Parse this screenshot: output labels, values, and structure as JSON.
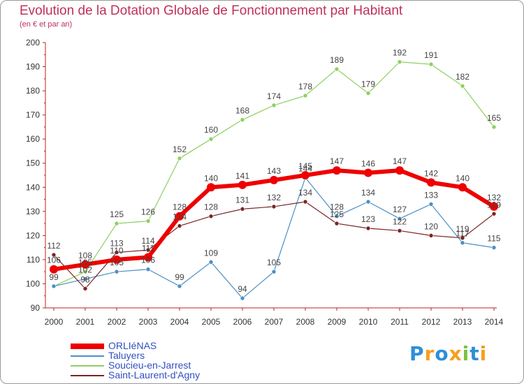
{
  "header": {
    "title": "Evolution de la Dotation Globale de Fonctionnement par Habitant",
    "subtitle": "(en € et par an)"
  },
  "logo": {
    "letters": [
      "P",
      "r",
      "o",
      "x",
      "i",
      "t",
      "i"
    ],
    "colors": [
      "#2f8fd8",
      "#f5a020",
      "#2f8fd8",
      "#f5a020",
      "#7cc142",
      "#2f8fd8",
      "#f5a020"
    ]
  },
  "chart_data": {
    "type": "line",
    "title": "Evolution de la Dotation Globale de Fonctionnement par Habitant",
    "subtitle": "(en € et par an)",
    "xlabel": "",
    "ylabel": "",
    "x": [
      "2000",
      "2001",
      "2002",
      "2003",
      "2004",
      "2005",
      "2006",
      "2007",
      "2008",
      "2009",
      "2010",
      "2011",
      "2012",
      "2013",
      "2014"
    ],
    "ylim": [
      90,
      200
    ],
    "yticks": [
      90,
      100,
      110,
      120,
      130,
      140,
      150,
      160,
      170,
      180,
      190,
      200
    ],
    "grid": false,
    "legend_position": "bottom-left",
    "series": [
      {
        "name": "ORLIéNAS",
        "color": "#ee0000",
        "width": 6,
        "marker": 6,
        "values": [
          106,
          108,
          110,
          111,
          128,
          140,
          141,
          143,
          145,
          147,
          146,
          147,
          142,
          140,
          132
        ]
      },
      {
        "name": "Taluyers",
        "color": "#4a8fc6",
        "width": 1.2,
        "marker": 3,
        "values": [
          99,
          102,
          105,
          106,
          99,
          109,
          94,
          105,
          144,
          128,
          134,
          127,
          133,
          117,
          115
        ]
      },
      {
        "name": "Soucieu-en-Jarrest",
        "color": "#8ed060",
        "width": 1.2,
        "marker": 3,
        "values": [
          99,
          105,
          125,
          126,
          152,
          160,
          168,
          174,
          178,
          189,
          179,
          192,
          191,
          182,
          165
        ]
      },
      {
        "name": "Saint-Laurent-d'Agny",
        "color": "#7a2424",
        "width": 1.2,
        "marker": 3,
        "values": [
          112,
          98,
          113,
          114,
          124,
          128,
          131,
          132,
          134,
          125,
          123,
          122,
          120,
          119,
          129
        ]
      }
    ],
    "data_labels": [
      {
        "series": 0,
        "index": 0,
        "text": "106"
      },
      {
        "series": 0,
        "index": 1,
        "text": "108"
      },
      {
        "series": 0,
        "index": 2,
        "text": "110"
      },
      {
        "series": 0,
        "index": 3,
        "text": "111"
      },
      {
        "series": 0,
        "index": 4,
        "text": "128"
      },
      {
        "series": 0,
        "index": 5,
        "text": "140"
      },
      {
        "series": 0,
        "index": 6,
        "text": "141"
      },
      {
        "series": 0,
        "index": 7,
        "text": "143"
      },
      {
        "series": 0,
        "index": 8,
        "text": "145"
      },
      {
        "series": 0,
        "index": 9,
        "text": "147"
      },
      {
        "series": 0,
        "index": 10,
        "text": "146"
      },
      {
        "series": 0,
        "index": 11,
        "text": "147"
      },
      {
        "series": 0,
        "index": 12,
        "text": "142"
      },
      {
        "series": 0,
        "index": 13,
        "text": "140"
      },
      {
        "series": 0,
        "index": 14,
        "text": "132"
      },
      {
        "series": 1,
        "index": 1,
        "text": "102"
      },
      {
        "series": 1,
        "index": 2,
        "text": "105"
      },
      {
        "series": 1,
        "index": 3,
        "text": "106"
      },
      {
        "series": 1,
        "index": 4,
        "text": "99"
      },
      {
        "series": 1,
        "index": 5,
        "text": "109"
      },
      {
        "series": 1,
        "index": 6,
        "text": "94"
      },
      {
        "series": 1,
        "index": 7,
        "text": "105"
      },
      {
        "series": 1,
        "index": 8,
        "text": "144"
      },
      {
        "series": 1,
        "index": 9,
        "text": "128"
      },
      {
        "series": 1,
        "index": 10,
        "text": "134"
      },
      {
        "series": 1,
        "index": 11,
        "text": "127"
      },
      {
        "series": 1,
        "index": 12,
        "text": "133"
      },
      {
        "series": 1,
        "index": 13,
        "text": "117"
      },
      {
        "series": 1,
        "index": 14,
        "text": "115"
      },
      {
        "series": 2,
        "index": 0,
        "text": "99"
      },
      {
        "series": 2,
        "index": 1,
        "text": "105"
      },
      {
        "series": 2,
        "index": 2,
        "text": "125"
      },
      {
        "series": 2,
        "index": 3,
        "text": "126"
      },
      {
        "series": 2,
        "index": 4,
        "text": "152"
      },
      {
        "series": 2,
        "index": 5,
        "text": "160"
      },
      {
        "series": 2,
        "index": 6,
        "text": "168"
      },
      {
        "series": 2,
        "index": 7,
        "text": "174"
      },
      {
        "series": 2,
        "index": 8,
        "text": "178"
      },
      {
        "series": 2,
        "index": 9,
        "text": "189"
      },
      {
        "series": 2,
        "index": 10,
        "text": "179"
      },
      {
        "series": 2,
        "index": 11,
        "text": "192"
      },
      {
        "series": 2,
        "index": 12,
        "text": "191"
      },
      {
        "series": 2,
        "index": 13,
        "text": "182"
      },
      {
        "series": 2,
        "index": 14,
        "text": "165"
      },
      {
        "series": 3,
        "index": 0,
        "text": "112"
      },
      {
        "series": 3,
        "index": 1,
        "text": "98"
      },
      {
        "series": 3,
        "index": 2,
        "text": "113"
      },
      {
        "series": 3,
        "index": 3,
        "text": "114"
      },
      {
        "series": 3,
        "index": 4,
        "text": "124"
      },
      {
        "series": 3,
        "index": 5,
        "text": "128"
      },
      {
        "series": 3,
        "index": 6,
        "text": "131"
      },
      {
        "series": 3,
        "index": 7,
        "text": "132"
      },
      {
        "series": 3,
        "index": 8,
        "text": "134"
      },
      {
        "series": 3,
        "index": 9,
        "text": "125"
      },
      {
        "series": 3,
        "index": 10,
        "text": "123"
      },
      {
        "series": 3,
        "index": 11,
        "text": "122"
      },
      {
        "series": 3,
        "index": 12,
        "text": "120"
      },
      {
        "series": 3,
        "index": 13,
        "text": "119"
      },
      {
        "series": 3,
        "index": 14,
        "text": "129"
      }
    ]
  }
}
